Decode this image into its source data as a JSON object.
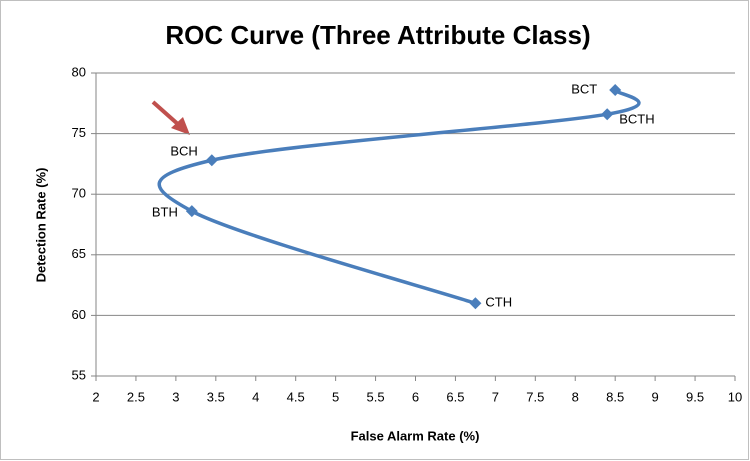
{
  "chart_data": {
    "type": "line",
    "title": "ROC Curve (Three Attribute Class)",
    "x_label": "False Alarm Rate (%)",
    "y_label": "Detection Rate (%)",
    "labels": [
      "CTH",
      "BTH",
      "BCH",
      "BCTH",
      "BCT"
    ],
    "x": [
      6.75,
      3.2,
      3.45,
      8.4,
      8.5
    ],
    "values": [
      61,
      68.6,
      72.8,
      76.6,
      78.6
    ],
    "color": "#4a7ebb",
    "smooth": true,
    "grid": true,
    "xlim": [
      2,
      10
    ],
    "xticks": [
      2,
      2.5,
      3,
      3.5,
      4,
      4.5,
      5,
      5.5,
      6,
      6.5,
      7,
      7.5,
      8,
      8.5,
      9,
      9.5,
      10
    ],
    "ylim": [
      55,
      80
    ],
    "yticks": [
      55,
      60,
      65,
      70,
      75,
      80
    ]
  }
}
